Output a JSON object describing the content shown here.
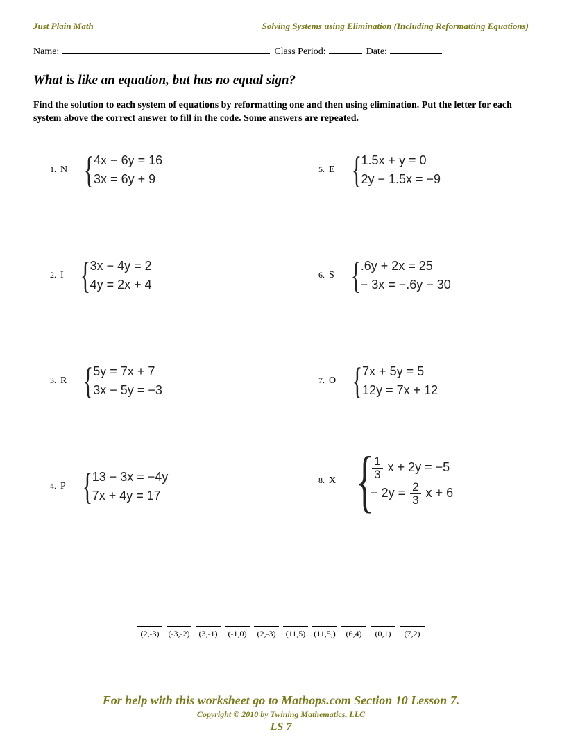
{
  "header": {
    "left": "Just Plain Math",
    "right": "Solving Systems using Elimination (Including Reformatting Equations)"
  },
  "nameRow": {
    "name": "Name:",
    "classPeriod": "Class Period:",
    "date": "Date:"
  },
  "riddle": "What is like an equation, but has no equal sign?",
  "instructions": "Find the solution to each system of equations by reformatting one and then using elimination. Put the letter for each system above the correct answer to fill in the code.  Some answers are repeated.",
  "leftProblems": [
    {
      "num": "1.",
      "letter": "N",
      "eq1": "4x − 6y = 16",
      "eq2": "3x = 6y + 9"
    },
    {
      "num": "2.",
      "letter": "I",
      "eq1": "3x − 4y = 2",
      "eq2": "4y = 2x + 4"
    },
    {
      "num": "3.",
      "letter": "R",
      "eq1": "5y = 7x + 7",
      "eq2": "3x − 5y = −3"
    },
    {
      "num": "4.",
      "letter": "P",
      "eq1": "13 − 3x = −4y",
      "eq2": "7x + 4y = 17"
    }
  ],
  "rightProblems": [
    {
      "num": "5.",
      "letter": "E",
      "eq1": "1.5x + y = 0",
      "eq2": "2y − 1.5x = −9"
    },
    {
      "num": "6.",
      "letter": "S",
      "eq1": ".6y + 2x = 25",
      "eq2": "− 3x = −.6y − 30"
    },
    {
      "num": "7.",
      "letter": "O",
      "eq1": "7x + 5y = 5",
      "eq2": "12y = 7x + 12"
    }
  ],
  "problem8": {
    "num": "8.",
    "letter": "X",
    "eq1a": "1",
    "eq1b": "3",
    "eq1rest": " x + 2y = −5",
    "eq2a": "− 2y = ",
    "eq2n": "2",
    "eq2d": "3",
    "eq2rest": " x + 6"
  },
  "answers": [
    "(2,-3)",
    "(-3,-2)",
    "(3,-1)",
    "(-1,0)",
    "(2,-3)",
    "(11,5)",
    "(11,5,)",
    "(6,4)",
    "(0,1)",
    "(7,2)"
  ],
  "footer": {
    "help": "For help with this worksheet go to Mathops.com Section 10 Lesson 7.",
    "copy": "Copyright © 2010 by Twining Mathematics, LLC",
    "code": "LS 7"
  }
}
